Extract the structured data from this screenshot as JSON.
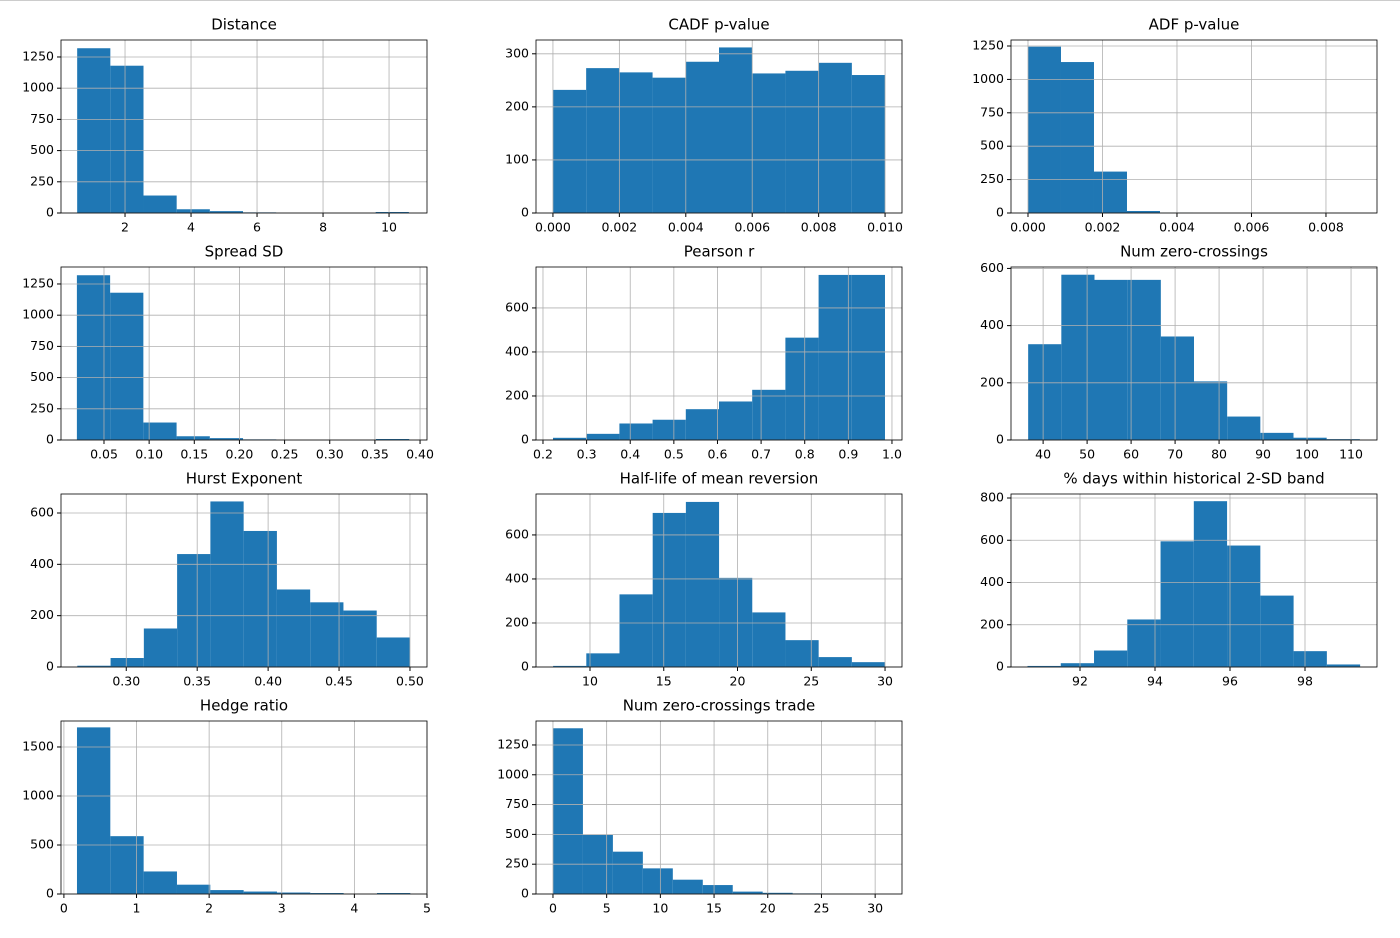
{
  "chart_data": [
    {
      "type": "histogram",
      "title": "Distance",
      "bins": [
        0.55,
        1.555,
        2.56,
        3.565,
        4.57,
        5.575,
        6.58,
        7.585,
        8.59,
        9.595,
        10.6
      ],
      "counts": [
        1320,
        1180,
        140,
        30,
        15,
        5,
        0,
        0,
        0,
        8
      ],
      "color": "#1f77b4",
      "xlim": [
        0.06,
        11.15
      ],
      "ylim": [
        0,
        1386
      ],
      "xticks": [
        2,
        4,
        6,
        8,
        10
      ],
      "yticks": [
        0,
        250,
        500,
        750,
        1000,
        1250
      ],
      "grid": true
    },
    {
      "type": "histogram",
      "title": "CADF p-value",
      "bins": [
        0,
        0.001,
        0.002,
        0.003,
        0.004,
        0.005,
        0.006,
        0.007,
        0.008,
        0.009,
        0.01
      ],
      "counts": [
        232,
        273,
        265,
        255,
        285,
        312,
        263,
        268,
        283,
        260
      ],
      "color": "#1f77b4",
      "xlim": [
        -0.00051,
        0.01051
      ],
      "ylim": [
        0,
        326
      ],
      "xticks": [
        {
          "value": 0,
          "label": "0.000"
        },
        {
          "value": 0.002,
          "label": "0.002"
        },
        {
          "value": 0.004,
          "label": "0.004"
        },
        {
          "value": 0.006,
          "label": "0.006"
        },
        {
          "value": 0.008,
          "label": "0.008"
        },
        {
          "value": 0.01,
          "label": "0.010"
        }
      ],
      "yticks": [
        0,
        100,
        200,
        300
      ],
      "grid": true
    },
    {
      "type": "histogram",
      "title": "ADF p-value",
      "bins": [
        0,
        0.000886,
        0.001772,
        0.002658,
        0.003544,
        0.00443,
        0.005316,
        0.006202,
        0.007088,
        0.007974,
        0.00886
      ],
      "counts": [
        1245,
        1130,
        310,
        15,
        2,
        0,
        0,
        0,
        0,
        1
      ],
      "color": "#1f77b4",
      "xlim": [
        -0.000456,
        0.00937
      ],
      "ylim": [
        0,
        1295
      ],
      "xticks": [
        {
          "value": 0,
          "label": "0.000"
        },
        {
          "value": 0.002,
          "label": "0.002"
        },
        {
          "value": 0.004,
          "label": "0.004"
        },
        {
          "value": 0.006,
          "label": "0.006"
        },
        {
          "value": 0.008,
          "label": "0.008"
        }
      ],
      "yticks": [
        0,
        250,
        500,
        750,
        1000,
        1250
      ],
      "grid": true
    },
    {
      "type": "histogram",
      "title": "Spread SD",
      "bins": [
        0.02,
        0.0568,
        0.0936,
        0.1304,
        0.1672,
        0.204,
        0.2408,
        0.2776,
        0.3144,
        0.3512,
        0.388
      ],
      "counts": [
        1320,
        1180,
        140,
        30,
        15,
        5,
        0,
        0,
        0,
        8
      ],
      "color": "#1f77b4",
      "xlim": [
        0.0024,
        0.4077
      ],
      "ylim": [
        0,
        1386
      ],
      "xticks": [
        0.05,
        {
          "value": 0.1,
          "label": "0.10"
        },
        0.15,
        {
          "value": 0.2,
          "label": "0.20"
        },
        0.25,
        {
          "value": 0.3,
          "label": "0.30"
        },
        0.35,
        {
          "value": 0.4,
          "label": "0.40"
        }
      ],
      "yticks": [
        0,
        250,
        500,
        750,
        1000,
        1250
      ],
      "grid": true
    },
    {
      "type": "histogram",
      "title": "Pearson r",
      "bins": [
        0.223,
        0.2991,
        0.3752,
        0.4513,
        0.5274,
        0.6035,
        0.6796,
        0.7557,
        0.8318,
        0.9079,
        0.984
      ],
      "counts": [
        10,
        28,
        75,
        92,
        140,
        175,
        228,
        465,
        750,
        750
      ],
      "color": "#1f77b4",
      "xlim": [
        0.184,
        1.023
      ],
      "ylim": [
        0,
        786
      ],
      "xticks": [
        0.2,
        0.3,
        0.4,
        0.5,
        0.6,
        0.7,
        0.8,
        0.9,
        {
          "value": 1,
          "label": "1.0"
        }
      ],
      "yticks": [
        0,
        200,
        400,
        600
      ],
      "grid": true
    },
    {
      "type": "histogram",
      "title": "Num zero-crossings",
      "bins": [
        36.6,
        44.14,
        51.68,
        59.22,
        66.76,
        74.3,
        81.84,
        89.38,
        96.92,
        104.46,
        112
      ],
      "counts": [
        335,
        578,
        560,
        560,
        362,
        205,
        82,
        25,
        8,
        3
      ],
      "color": "#1f77b4",
      "xlim": [
        32.7,
        115.9
      ],
      "ylim": [
        0,
        605
      ],
      "xticks": [
        40,
        50,
        60,
        70,
        80,
        90,
        100,
        110
      ],
      "yticks": [
        0,
        200,
        400,
        600
      ],
      "grid": true
    },
    {
      "type": "histogram",
      "title": "Hurst Exponent",
      "bins": [
        0.2655,
        0.28895,
        0.3124,
        0.33585,
        0.3593,
        0.38275,
        0.4062,
        0.42965,
        0.4531,
        0.47655,
        0.5
      ],
      "counts": [
        5,
        35,
        150,
        440,
        645,
        530,
        302,
        252,
        220,
        115
      ],
      "color": "#1f77b4",
      "xlim": [
        0.254,
        0.512
      ],
      "ylim": [
        0,
        674
      ],
      "xticks": [
        {
          "value": 0.3,
          "label": "0.30"
        },
        0.35,
        {
          "value": 0.4,
          "label": "0.40"
        },
        0.45,
        {
          "value": 0.5,
          "label": "0.50"
        }
      ],
      "yticks": [
        0,
        200,
        400,
        600
      ],
      "grid": true
    },
    {
      "type": "histogram",
      "title": "Half-life of mean reversion",
      "bins": [
        7.5,
        9.75,
        12,
        14.25,
        16.5,
        18.75,
        21,
        23.25,
        25.5,
        27.75,
        30
      ],
      "counts": [
        5,
        62,
        330,
        700,
        750,
        405,
        248,
        122,
        45,
        22
      ],
      "color": "#1f77b4",
      "xlim": [
        6.34,
        31.15
      ],
      "ylim": [
        0,
        786
      ],
      "xticks": [
        10,
        15,
        20,
        25,
        30
      ],
      "yticks": [
        0,
        200,
        400,
        600
      ],
      "grid": true
    },
    {
      "type": "histogram",
      "title": "% days within historical 2-SD band",
      "bins": [
        90.6,
        91.487,
        92.374,
        93.261,
        94.148,
        95.035,
        95.922,
        96.809,
        97.696,
        98.583,
        99.47
      ],
      "counts": [
        5,
        18,
        78,
        225,
        595,
        785,
        575,
        338,
        75,
        12
      ],
      "color": "#1f77b4",
      "xlim": [
        90.16,
        99.92
      ],
      "ylim": [
        0,
        819
      ],
      "xticks": [
        92,
        94,
        96,
        98
      ],
      "yticks": [
        0,
        200,
        400,
        600,
        800
      ],
      "grid": true
    },
    {
      "type": "histogram",
      "title": "Hedge ratio",
      "bins": [
        0.18,
        0.639,
        1.098,
        1.557,
        2.016,
        2.475,
        2.934,
        3.393,
        3.852,
        4.311,
        4.77
      ],
      "counts": [
        1700,
        590,
        230,
        95,
        40,
        25,
        15,
        10,
        0,
        10
      ],
      "color": "#1f77b4",
      "xlim": [
        -0.04,
        5.0
      ],
      "ylim": [
        0,
        1765
      ],
      "xticks": [
        0,
        1,
        2,
        3,
        4,
        5
      ],
      "yticks": [
        0,
        500,
        1000,
        1500
      ],
      "grid": true
    },
    {
      "type": "histogram",
      "title": "Num zero-crossings trade",
      "bins": [
        0,
        2.79,
        5.58,
        8.37,
        11.16,
        13.95,
        16.74,
        19.53,
        22.32,
        25.11,
        27.9
      ],
      "counts": [
        1390,
        495,
        355,
        215,
        120,
        75,
        20,
        10,
        5,
        2
      ],
      "color": "#1f77b4",
      "xlim": [
        -1.58,
        32.5
      ],
      "ylim": [
        0,
        1451
      ],
      "xticks": [
        0,
        5,
        10,
        15,
        20,
        25,
        30
      ],
      "yticks": [
        0,
        250,
        500,
        750,
        1000,
        1250
      ],
      "grid": true
    }
  ]
}
